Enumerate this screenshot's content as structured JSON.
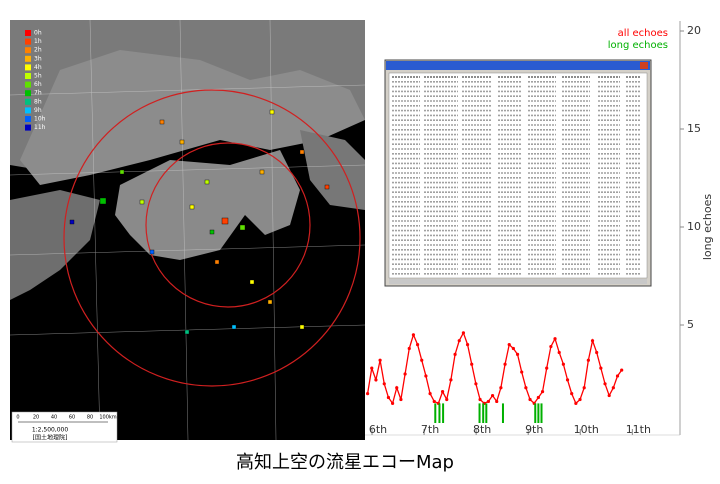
{
  "chart_data": {
    "type": "line",
    "ylabel": "long echoes",
    "xlim": [
      5.75,
      11.8
    ],
    "ylim": [
      0,
      20
    ],
    "xticks": [
      {
        "value": 6,
        "label": "6th"
      },
      {
        "value": 7,
        "label": "7th"
      },
      {
        "value": 8,
        "label": "8th"
      },
      {
        "value": 9,
        "label": "9th"
      },
      {
        "value": 10,
        "label": "10th"
      },
      {
        "value": 11,
        "label": "11th"
      }
    ],
    "yticks": [
      5,
      10,
      15,
      20
    ],
    "series": [
      {
        "name": "all echoes",
        "color": "#ff0000",
        "type": "line",
        "x": [
          5.8,
          5.88,
          5.96,
          6.04,
          6.12,
          6.2,
          6.28,
          6.36,
          6.44,
          6.52,
          6.6,
          6.68,
          6.76,
          6.84,
          6.92,
          7,
          7.08,
          7.16,
          7.24,
          7.32,
          7.4,
          7.48,
          7.56,
          7.64,
          7.72,
          7.8,
          7.88,
          7.96,
          8.04,
          8.12,
          8.2,
          8.28,
          8.36,
          8.44,
          8.52,
          8.6,
          8.68,
          8.76,
          8.84,
          8.92,
          9,
          9.08,
          9.16,
          9.24,
          9.32,
          9.4,
          9.48,
          9.56,
          9.64,
          9.72,
          9.8,
          9.88,
          9.96,
          10.04,
          10.12,
          10.2,
          10.28,
          10.36,
          10.44,
          10.52,
          10.6,
          10.68
        ],
        "values": [
          1.5,
          2.8,
          2.2,
          3.2,
          2.0,
          1.3,
          1.0,
          1.8,
          1.2,
          2.5,
          3.8,
          4.5,
          4.0,
          3.2,
          2.4,
          1.5,
          1.1,
          1.0,
          1.6,
          1.2,
          2.2,
          3.5,
          4.2,
          4.6,
          4.0,
          3.0,
          2.0,
          1.2,
          1.0,
          1.1,
          1.4,
          1.1,
          1.8,
          3.0,
          4.0,
          3.8,
          3.5,
          2.6,
          1.8,
          1.2,
          1.0,
          1.3,
          1.6,
          2.8,
          3.9,
          4.3,
          3.6,
          3.0,
          2.2,
          1.5,
          1.0,
          1.2,
          1.8,
          3.2,
          4.2,
          3.6,
          2.8,
          2.0,
          1.4,
          1.8,
          2.4,
          2.7
        ]
      },
      {
        "name": "long echoes",
        "color": "#00b000",
        "type": "bar",
        "x": [
          7.1,
          7.18,
          7.25,
          7.95,
          8.02,
          8.08,
          8.4,
          9.02,
          9.08,
          9.14
        ],
        "values": [
          1,
          1,
          1,
          1,
          1,
          1,
          1,
          1,
          1,
          1
        ]
      }
    ]
  },
  "map": {
    "legend": [
      {
        "label": "0h",
        "color": "#ff0000"
      },
      {
        "label": "1h",
        "color": "#ff4000"
      },
      {
        "label": "2h",
        "color": "#ff8000"
      },
      {
        "label": "3h",
        "color": "#ffb000"
      },
      {
        "label": "4h",
        "color": "#ffff00"
      },
      {
        "label": "5h",
        "color": "#c0ff00"
      },
      {
        "label": "6h",
        "color": "#60e000"
      },
      {
        "label": "7h",
        "color": "#00c000"
      },
      {
        "label": "8h",
        "color": "#00c080"
      },
      {
        "label": "9h",
        "color": "#00c0ff"
      },
      {
        "label": "10h",
        "color": "#0060ff"
      },
      {
        "label": "11h",
        "color": "#0000c0"
      }
    ],
    "scale_ticks": [
      "0",
      "20",
      "40",
      "60",
      "80",
      "100km"
    ],
    "scale": "1:2,500,000",
    "source": "[国土地理院]"
  },
  "caption": "高知上空の流星エコーMap"
}
